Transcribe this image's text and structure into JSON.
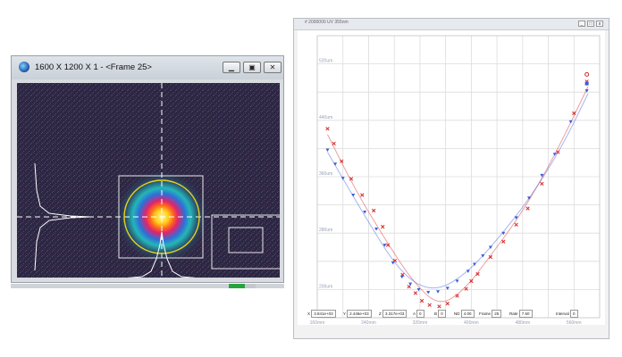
{
  "beam_window": {
    "title": "1600 X 1200 X 1 - <Frame 25>",
    "buttons": [
      "minimize",
      "restore",
      "close"
    ],
    "progress_fraction": 0.6,
    "colors": {
      "background": "#2c2440",
      "ellipse": "#e8d21a",
      "crosshair": "#ffffff",
      "accent": "#29a33f"
    }
  },
  "plot_window": {
    "title": "# 2000000 UV 355nm",
    "chart_data": {
      "type": "scatter",
      "xlabel": "",
      "ylabel": "",
      "x_ticks": [
        "160mm",
        "240mm",
        "320mm",
        "400mm",
        "480mm",
        "560mm"
      ],
      "y_ticks": [
        "520um",
        "440um",
        "360um",
        "280um",
        "200um"
      ],
      "xlim": [
        160,
        600
      ],
      "ylim": [
        160,
        560
      ],
      "grid": true,
      "series": [
        {
          "color": "#d62828",
          "marker": "x",
          "points": [
            [
              176,
              428
            ],
            [
              186,
              407
            ],
            [
              198,
              382
            ],
            [
              213,
              357
            ],
            [
              230,
              334
            ],
            [
              248,
              312
            ],
            [
              262,
              289
            ],
            [
              270,
              263
            ],
            [
              281,
              241
            ],
            [
              293,
              221
            ],
            [
              303,
              204
            ],
            [
              313,
              195
            ],
            [
              323,
              184
            ],
            [
              335,
              178
            ],
            [
              350,
              176
            ],
            [
              363,
              180
            ],
            [
              378,
              191
            ],
            [
              392,
              201
            ],
            [
              400,
              212
            ],
            [
              410,
              222
            ],
            [
              430,
              246
            ],
            [
              450,
              268
            ],
            [
              470,
              292
            ],
            [
              488,
              315
            ],
            [
              510,
              350
            ],
            [
              535,
              395
            ],
            [
              560,
              450
            ],
            [
              580,
              495
            ]
          ],
          "fit": [
            [
              176,
              420
            ],
            [
              220,
              340
            ],
            [
              270,
              265
            ],
            [
              310,
              210
            ],
            [
              350,
              176
            ],
            [
              390,
              200
            ],
            [
              430,
              248
            ],
            [
              480,
              310
            ],
            [
              530,
              390
            ],
            [
              582,
              488
            ]
          ]
        },
        {
          "color": "#3a5bd9",
          "marker": "v",
          "points": [
            [
              176,
              398
            ],
            [
              188,
              378
            ],
            [
              200,
              358
            ],
            [
              216,
              334
            ],
            [
              234,
              310
            ],
            [
              252,
              286
            ],
            [
              265,
              263
            ],
            [
              278,
              238
            ],
            [
              292,
              218
            ],
            [
              305,
              208
            ],
            [
              318,
              200
            ],
            [
              333,
              196
            ],
            [
              348,
              197
            ],
            [
              363,
              202
            ],
            [
              378,
              212
            ],
            [
              395,
              226
            ],
            [
              405,
              236
            ],
            [
              418,
              248
            ],
            [
              430,
              260
            ],
            [
              450,
              280
            ],
            [
              470,
              302
            ],
            [
              490,
              330
            ],
            [
              510,
              362
            ],
            [
              530,
              392
            ],
            [
              555,
              438
            ],
            [
              580,
              482
            ]
          ],
          "fit": [
            [
              176,
              395
            ],
            [
              230,
              310
            ],
            [
              290,
              222
            ],
            [
              340,
              196
            ],
            [
              390,
              220
            ],
            [
              440,
              270
            ],
            [
              490,
              328
            ],
            [
              540,
              400
            ],
            [
              582,
              478
            ]
          ]
        }
      ]
    },
    "status_bar": [
      {
        "label": "X",
        "value": "3.841e+03"
      },
      {
        "label": "Y",
        "value": "2.446e+03"
      },
      {
        "label": "Z",
        "value": "3.317e+03"
      },
      {
        "label": "A",
        "value": "0"
      },
      {
        "label": "B",
        "value": "0"
      },
      {
        "label": "ND",
        "value": "4.00"
      },
      {
        "label": "Frame",
        "value": "25"
      },
      {
        "label": "Rate",
        "value": "7.50"
      },
      {
        "label": "Interval",
        "value": "0"
      }
    ]
  }
}
